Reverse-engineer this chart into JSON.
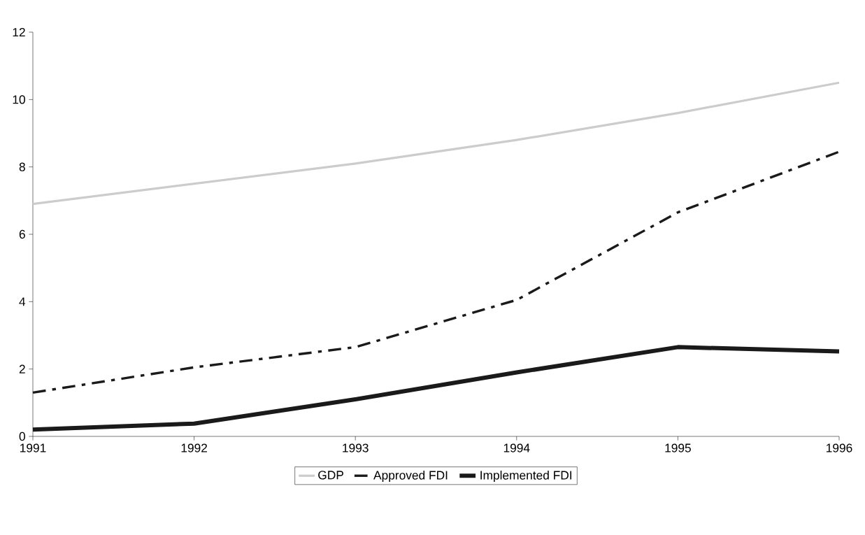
{
  "chart_data": {
    "type": "line",
    "x": [
      1991,
      1992,
      1993,
      1994,
      1995,
      1996
    ],
    "series": [
      {
        "name": "GDP",
        "color": "#cccccc",
        "line_style": "solid",
        "values": [
          6.9,
          7.5,
          8.1,
          8.8,
          9.6,
          10.5
        ]
      },
      {
        "name": "Approved FDI",
        "color": "#1a1a1a",
        "line_style": "dashed",
        "values": [
          1.3,
          2.05,
          2.65,
          4.05,
          6.65,
          8.45
        ]
      },
      {
        "name": "Implemented FDI",
        "color": "#1a1a1a",
        "line_style": "solid",
        "values": [
          0.2,
          0.38,
          1.1,
          1.9,
          2.65,
          2.52
        ]
      }
    ],
    "xlim": [
      1991,
      1996
    ],
    "xticks": [
      1991,
      1992,
      1993,
      1994,
      1995,
      1996
    ],
    "ylim": [
      0,
      12
    ],
    "yticks": [
      0,
      2,
      4,
      6,
      8,
      10,
      12
    ],
    "grid": false,
    "legend": "bottom",
    "marker": "none"
  }
}
